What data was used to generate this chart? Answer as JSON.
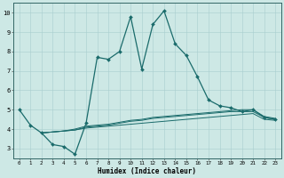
{
  "xlabel": "Humidex (Indice chaleur)",
  "xlim": [
    -0.5,
    23.5
  ],
  "ylim": [
    2.5,
    10.5
  ],
  "yticks": [
    3,
    4,
    5,
    6,
    7,
    8,
    9,
    10
  ],
  "xticks": [
    0,
    1,
    2,
    3,
    4,
    5,
    6,
    7,
    8,
    9,
    10,
    11,
    12,
    13,
    14,
    15,
    16,
    17,
    18,
    19,
    20,
    21,
    22,
    23
  ],
  "bg_color": "#cde8e5",
  "line_color": "#1a6b6b",
  "lines": [
    {
      "x": [
        0,
        1,
        2,
        3,
        4,
        5,
        6,
        7,
        8,
        9,
        10,
        11,
        12,
        13,
        14,
        15,
        16,
        17,
        18,
        19,
        20,
        21,
        22,
        23
      ],
      "y": [
        5.0,
        4.2,
        3.8,
        3.2,
        3.1,
        2.7,
        4.3,
        7.7,
        7.6,
        8.0,
        9.8,
        7.1,
        9.4,
        10.1,
        8.4,
        7.8,
        6.7,
        5.5,
        5.2,
        5.1,
        4.9,
        5.0,
        4.6,
        4.5
      ],
      "marker": true
    },
    {
      "x": [
        2,
        3,
        4,
        5,
        6,
        7,
        8,
        9,
        10,
        11,
        12,
        13,
        14,
        15,
        16,
        17,
        18,
        19,
        20,
        21,
        22,
        23
      ],
      "y": [
        3.8,
        3.85,
        3.9,
        3.95,
        4.05,
        4.1,
        4.15,
        4.2,
        4.25,
        4.3,
        4.35,
        4.4,
        4.45,
        4.5,
        4.55,
        4.6,
        4.65,
        4.7,
        4.75,
        4.8,
        4.5,
        4.45
      ],
      "marker": false
    },
    {
      "x": [
        2,
        3,
        4,
        5,
        6,
        7,
        8,
        9,
        10,
        11,
        12,
        13,
        14,
        15,
        16,
        17,
        18,
        19,
        20,
        21,
        22,
        23
      ],
      "y": [
        3.8,
        3.85,
        3.9,
        3.95,
        4.1,
        4.15,
        4.2,
        4.3,
        4.4,
        4.45,
        4.55,
        4.6,
        4.65,
        4.7,
        4.75,
        4.8,
        4.85,
        4.9,
        4.9,
        4.9,
        4.6,
        4.5
      ],
      "marker": false
    },
    {
      "x": [
        2,
        3,
        4,
        5,
        6,
        7,
        8,
        9,
        10,
        11,
        12,
        13,
        14,
        15,
        16,
        17,
        18,
        19,
        20,
        21,
        22,
        23
      ],
      "y": [
        3.8,
        3.85,
        3.9,
        4.0,
        4.15,
        4.2,
        4.25,
        4.35,
        4.45,
        4.5,
        4.6,
        4.65,
        4.7,
        4.75,
        4.8,
        4.85,
        4.9,
        4.95,
        5.0,
        5.0,
        4.65,
        4.55
      ],
      "marker": false
    }
  ]
}
